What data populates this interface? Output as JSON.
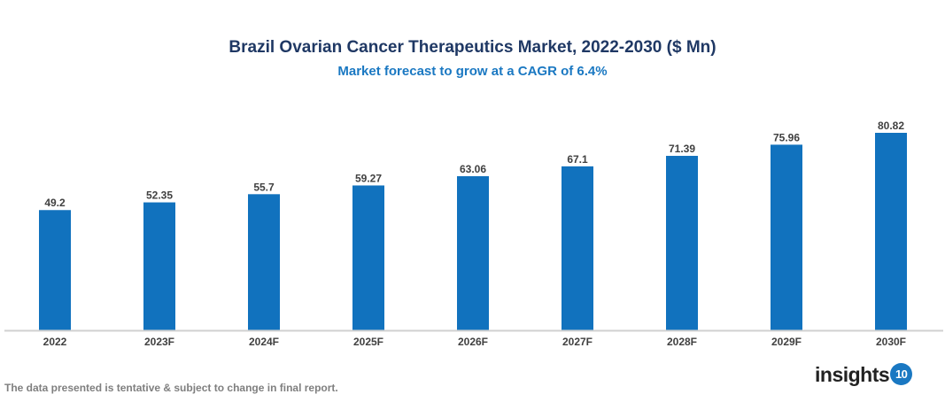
{
  "chart_data": {
    "type": "bar",
    "title": "Brazil Ovarian Cancer Therapeutics Market, 2022-2030 ($ Mn)",
    "subtitle": "Market forecast to grow at a CAGR of 6.4%",
    "categories": [
      "2022",
      "2023F",
      "2024F",
      "2025F",
      "2026F",
      "2027F",
      "2028F",
      "2029F",
      "2030F"
    ],
    "values": [
      49.2,
      52.35,
      55.7,
      59.27,
      63.06,
      67.1,
      71.39,
      75.96,
      80.82
    ],
    "value_labels": [
      "49.2",
      "52.35",
      "55.7",
      "59.27",
      "63.06",
      "67.1",
      "71.39",
      "75.96",
      "80.82"
    ],
    "xlabel": "",
    "ylabel": "",
    "ylim": [
      0,
      81
    ],
    "grid": false,
    "legend": "none",
    "bar_color": "#1172be",
    "axis_color": "#d0d0d0"
  },
  "footer": {
    "note": "The data presented is tentative & subject to change in final report.",
    "logo_text": "insights",
    "logo_badge": "10"
  }
}
